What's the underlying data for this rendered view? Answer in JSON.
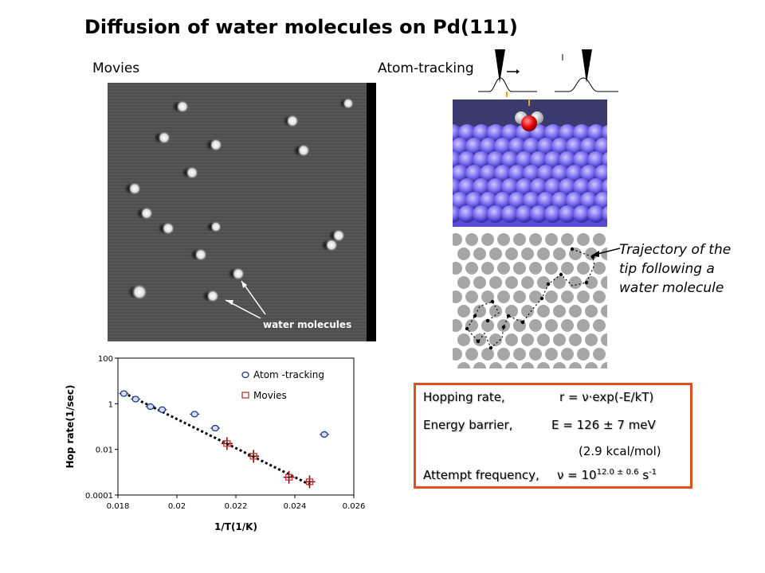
{
  "title": "Diffusion of water molecules on Pd(111)",
  "movies_label": "Movies",
  "atom_tracking_label": "Atom-tracking",
  "stm_image_label": "water molecules",
  "trajectory_caption": [
    "Trajectory of the",
    "tip following a",
    "water molecule"
  ],
  "equations": {
    "hopping_rate_label": "Hopping rate,",
    "hopping_rate_formula": "r  =  ν·exp(-E/kT)",
    "energy_barrier_label": "Energy barrier,",
    "energy_barrier_formula": "E = 126 ± 7 meV",
    "energy_kcal": "(2.9 kcal/mol)",
    "attempt_label": "Attempt frequency,",
    "attempt_formula_base": "ν = 10",
    "attempt_formula_exp": "12.0 ± 0.6",
    "attempt_formula_unit": " s",
    "attempt_formula_unit_exp": "-1"
  },
  "colors": {
    "box_border": "#e0501f",
    "atom_tracking_marker": "#1f3a8a",
    "movies_marker": "#c0392b",
    "fit_line": "#000000",
    "surface_atoms": "#7b6cf0",
    "water_oxygen": "#e00000"
  },
  "chart_data": {
    "type": "scatter",
    "xlabel": "1/T(1/K)",
    "ylabel": "Hop rate(1/sec)",
    "xlim": [
      0.018,
      0.026
    ],
    "ylim": [
      0.0001,
      100
    ],
    "yscale": "log",
    "x_ticks": [
      "0.018",
      "0.02",
      "0.022",
      "0.024",
      "0.026"
    ],
    "y_ticks": [
      "0.0001",
      "0.01",
      "1",
      "100"
    ],
    "legend_position": "top-right",
    "series": [
      {
        "name": "Atom -tracking",
        "marker": "circle",
        "x": [
          0.0182,
          0.0186,
          0.0191,
          0.0195,
          0.0206,
          0.0213,
          0.025
        ],
        "y": [
          2.8,
          1.6,
          0.75,
          0.55,
          0.35,
          0.085,
          0.045
        ]
      },
      {
        "name": "Movies",
        "marker": "square",
        "x": [
          0.0217,
          0.0226,
          0.0238,
          0.0245
        ],
        "y": [
          0.018,
          0.005,
          0.0006,
          0.00038
        ]
      }
    ],
    "fit_line": {
      "x": [
        0.0182,
        0.0246
      ],
      "y": [
        3.0,
        0.00025
      ]
    }
  }
}
